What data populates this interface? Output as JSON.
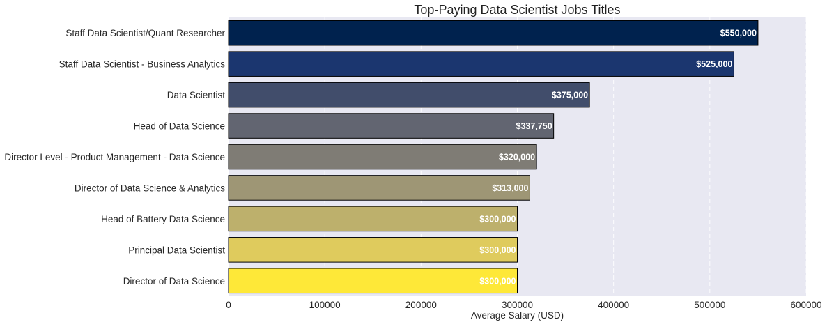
{
  "chart_data": {
    "type": "bar",
    "orientation": "horizontal",
    "title": "Top-Paying Data Scientist Jobs Titles",
    "xlabel": "Average Salary (USD)",
    "ylabel": "",
    "xlim": [
      0,
      600000
    ],
    "x_ticks": [
      0,
      100000,
      200000,
      300000,
      400000,
      500000,
      600000
    ],
    "x_tick_labels": [
      "0",
      "100000",
      "200000",
      "300000",
      "400000",
      "500000",
      "600000"
    ],
    "grid": "vertical dashed lines",
    "plot_background": "#e8e8f2",
    "categories": [
      "Staff Data Scientist/Quant Researcher",
      "Staff Data Scientist - Business Analytics",
      "Data Scientist",
      "Head of Data Science",
      "Director Level - Product Management - Data Science",
      "Director of Data Science & Analytics",
      "Head of Battery Data Science",
      "Principal Data Scientist",
      "Director of Data Science"
    ],
    "values": [
      550000,
      525000,
      375000,
      337750,
      320000,
      313000,
      300000,
      300000,
      300000
    ],
    "value_labels": [
      "$550,000",
      "$525,000",
      "$375,000",
      "$337,750",
      "$320,000",
      "$313,000",
      "$300,000",
      "$300,000",
      "$300,000"
    ],
    "colors": [
      "#00224e",
      "#1b366f",
      "#414d6b",
      "#626571",
      "#7f7c75",
      "#9e9675",
      "#bdb06c",
      "#dfcb5d",
      "#fee838"
    ]
  }
}
